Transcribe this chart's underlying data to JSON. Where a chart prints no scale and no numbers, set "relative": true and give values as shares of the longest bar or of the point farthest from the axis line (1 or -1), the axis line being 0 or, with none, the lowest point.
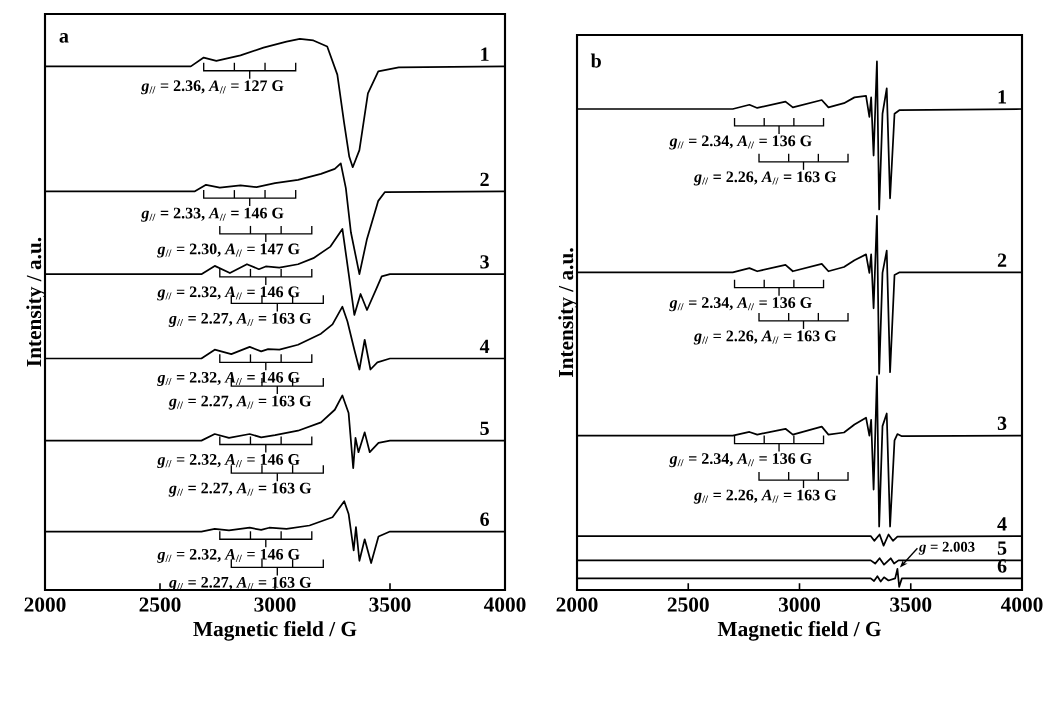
{
  "chart_data": [
    {
      "type": "line",
      "title": "a",
      "xlabel": "Magnetic field / G",
      "ylabel": "Intensity / a.u.",
      "relative": true,
      "xlim": [
        2000,
        4000
      ],
      "xticks": [
        2000,
        2500,
        3000,
        3500,
        4000
      ],
      "series": [
        {
          "name": "1",
          "color": "#000000",
          "x": [
            2000,
            2634,
            2690,
            2745,
            2850,
            2950,
            3050,
            3108,
            3167,
            3227,
            3271,
            3300,
            3323,
            3338,
            3367,
            3404,
            3449,
            3538,
            4000
          ],
          "values": [
            0.95,
            0.95,
            0.966,
            0.96,
            0.97,
            0.984,
            0.995,
            1.0,
            0.997,
            0.986,
            0.935,
            0.849,
            0.786,
            0.767,
            0.798,
            0.901,
            0.941,
            0.948,
            0.95
          ]
        },
        {
          "name": "2",
          "color": "#000000",
          "x": [
            2000,
            2650,
            2700,
            2760,
            2850,
            2920,
            3000,
            3100,
            3200,
            3260,
            3286,
            3308,
            3330,
            3367,
            3400,
            3449,
            3478,
            4000
          ],
          "values": [
            0.723,
            0.723,
            0.735,
            0.73,
            0.734,
            0.731,
            0.738,
            0.744,
            0.755,
            0.764,
            0.774,
            0.729,
            0.649,
            0.573,
            0.637,
            0.706,
            0.722,
            0.723
          ]
        },
        {
          "name": "3",
          "color": "#000000",
          "x": [
            2000,
            2680,
            2738,
            2804,
            2878,
            2930,
            2960,
            3019,
            3100,
            3167,
            3241,
            3293,
            3320,
            3345,
            3372,
            3400,
            3440,
            3464,
            3500,
            4000
          ],
          "values": [
            0.573,
            0.573,
            0.588,
            0.575,
            0.591,
            0.582,
            0.587,
            0.585,
            0.591,
            0.602,
            0.623,
            0.655,
            0.575,
            0.499,
            0.537,
            0.508,
            0.546,
            0.569,
            0.573,
            0.573
          ]
        },
        {
          "name": "4",
          "color": "#000000",
          "x": [
            2000,
            2680,
            2738,
            2810,
            2890,
            2940,
            2970,
            3019,
            3100,
            3200,
            3250,
            3293,
            3315,
            3345,
            3367,
            3390,
            3415,
            3445,
            3500,
            4000
          ],
          "values": [
            0.42,
            0.42,
            0.436,
            0.428,
            0.441,
            0.433,
            0.437,
            0.436,
            0.445,
            0.465,
            0.482,
            0.514,
            0.487,
            0.436,
            0.4,
            0.454,
            0.4,
            0.413,
            0.42,
            0.42
          ]
        },
        {
          "name": "5",
          "color": "#000000",
          "x": [
            2000,
            2680,
            2738,
            2800,
            2890,
            2940,
            3000,
            3100,
            3200,
            3260,
            3293,
            3320,
            3340,
            3350,
            3363,
            3390,
            3412,
            3450,
            3500,
            4000
          ],
          "values": [
            0.271,
            0.271,
            0.283,
            0.276,
            0.283,
            0.277,
            0.281,
            0.289,
            0.304,
            0.327,
            0.353,
            0.321,
            0.221,
            0.276,
            0.25,
            0.286,
            0.25,
            0.267,
            0.271,
            0.271
          ]
        },
        {
          "name": "6",
          "color": "#000000",
          "x": [
            2000,
            2680,
            2738,
            2800,
            2890,
            2940,
            2975,
            3050,
            3150,
            3250,
            3301,
            3320,
            3342,
            3352,
            3367,
            3390,
            3418,
            3450,
            3500,
            4000
          ],
          "values": [
            0.106,
            0.106,
            0.111,
            0.108,
            0.113,
            0.109,
            0.113,
            0.111,
            0.117,
            0.132,
            0.161,
            0.138,
            0.072,
            0.114,
            0.053,
            0.092,
            0.049,
            0.097,
            0.106,
            0.106
          ]
        }
      ],
      "annotations": [
        "*g*$_{//}$ = 2.36, *A*$_{//}$ = 127 G",
        "*g*$_{//}$ = 2.33, *A*$_{//}$ = 146 G",
        "*g*$_{//}$ = 2.30, *A*$_{//}$ = 147 G",
        "*g*$_{//}$ = 2.32, *A*$_{//}$ = 146 G",
        "*g*$_{//}$ = 2.27, *A*$_{//}$ = 163 G",
        "*g*$_{//}$ = 2.32, *A*$_{//}$ = 146 G",
        "*g*$_{//}$ = 2.27, *A*$_{//}$ = 163 G",
        "*g*$_{//}$ = 2.32, *A*$_{//}$ = 146 G",
        "*g*$_{//}$ = 2.27, *A*$_{//}$ = 163 G",
        "*g*$_{//}$ = 2.32, *A*$_{//}$ = 146 G",
        "*g*$_{//}$ = 2.27, *A*$_{//}$ = 163 G"
      ]
    },
    {
      "type": "line",
      "title": "b",
      "xlabel": "Magnetic field / G",
      "ylabel": "Intensity / a.u.",
      "relative": true,
      "xlim": [
        2000,
        4000
      ],
      "xticks": [
        2000,
        2500,
        3000,
        3500,
        4000
      ],
      "series": [
        {
          "name": "1",
          "color": "#000000",
          "x": [
            2000,
            2700,
            2775,
            2810,
            2937,
            2970,
            3100,
            3130,
            3200,
            3247,
            3299,
            3314,
            3322,
            3333,
            3348,
            3358,
            3373,
            3392,
            3407,
            3427,
            3450,
            4000
          ],
          "values": [
            0.91,
            0.91,
            0.918,
            0.912,
            0.924,
            0.913,
            0.927,
            0.913,
            0.921,
            0.932,
            0.935,
            0.895,
            0.932,
            0.822,
            1.0,
            0.72,
            0.901,
            0.949,
            0.741,
            0.901,
            0.908,
            0.91
          ]
        },
        {
          "name": "2",
          "color": "#000000",
          "x": [
            2000,
            2700,
            2775,
            2810,
            2937,
            2970,
            3100,
            3130,
            3200,
            3247,
            3299,
            3314,
            3322,
            3333,
            3348,
            3358,
            3373,
            3392,
            3407,
            3427,
            3450,
            4000
          ],
          "values": [
            0.601,
            0.601,
            0.609,
            0.603,
            0.615,
            0.603,
            0.617,
            0.603,
            0.611,
            0.624,
            0.635,
            0.6,
            0.635,
            0.533,
            0.708,
            0.409,
            0.6,
            0.642,
            0.412,
            0.596,
            0.601,
            0.601
          ]
        },
        {
          "name": "3",
          "color": "#000000",
          "x": [
            2000,
            2700,
            2775,
            2810,
            2937,
            2970,
            3100,
            3130,
            3200,
            3247,
            3299,
            3314,
            3322,
            3333,
            3348,
            3358,
            3373,
            3392,
            3407,
            3427,
            3440,
            3460,
            4000
          ],
          "values": [
            0.292,
            0.292,
            0.299,
            0.294,
            0.305,
            0.294,
            0.309,
            0.294,
            0.298,
            0.313,
            0.326,
            0.292,
            0.322,
            0.19,
            0.404,
            0.12,
            0.31,
            0.334,
            0.12,
            0.283,
            0.295,
            0.291,
            0.292
          ]
        },
        {
          "name": "4",
          "color": "#000000",
          "x": [
            2000,
            3320,
            3336,
            3360,
            3378,
            3400,
            3420,
            3440,
            4000
          ],
          "values": [
            0.102,
            0.102,
            0.093,
            0.105,
            0.084,
            0.105,
            0.093,
            0.101,
            0.102
          ]
        },
        {
          "name": "5",
          "color": "#000000",
          "x": [
            2000,
            3320,
            3340,
            3360,
            3380,
            3410,
            3425,
            3445,
            4000
          ],
          "values": [
            0.056,
            0.056,
            0.05,
            0.06,
            0.048,
            0.06,
            0.05,
            0.056,
            0.056
          ]
        },
        {
          "name": "6",
          "color": "#000000",
          "x": [
            2000,
            3320,
            3335,
            3350,
            3365,
            3380,
            3400,
            3430,
            3440,
            3448,
            3460,
            4000
          ],
          "values": [
            0.022,
            0.022,
            0.017,
            0.026,
            0.016,
            0.024,
            0.018,
            0.022,
            0.04,
            0.006,
            0.022,
            0.022
          ]
        }
      ],
      "annotations": [
        "*g*$_{//}$ = 2.34, *A*$_{//}$ = 136 G",
        "*g*$_{//}$ = 2.26, *A*$_{//}$ = 163 G",
        "*g*$_{//}$ = 2.34, *A*$_{//}$ = 136 G",
        "*g*$_{//}$ = 2.26, *A*$_{//}$ = 163 G",
        "*g*$_{//}$ = 2.34, *A*$_{//}$ = 136 G",
        "*g*$_{//}$ = 2.26, *A*$_{//}$ = 163 G",
        {
          "text": "*g* = 2.003",
          "x": 3445,
          "y": 0.04
        }
      ]
    }
  ]
}
